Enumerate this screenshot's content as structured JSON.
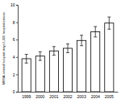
{
  "chart_data": {
    "type": "bar",
    "y_label": "MRSA-related hospital stays/1,000 hospitalizations",
    "categories": [
      "1999",
      "2000",
      "2001",
      "2002",
      "2003",
      "2004",
      "2005"
    ],
    "values": [
      3.8,
      4.1,
      4.7,
      5.0,
      5.9,
      6.9,
      7.9
    ],
    "errors": [
      0.5,
      0.5,
      0.5,
      0.5,
      0.6,
      0.6,
      0.7
    ],
    "color": "#ffffff",
    "ylim": [
      0,
      10
    ],
    "yticks": [
      0,
      2,
      4,
      6,
      8,
      10
    ],
    "grid": false
  }
}
